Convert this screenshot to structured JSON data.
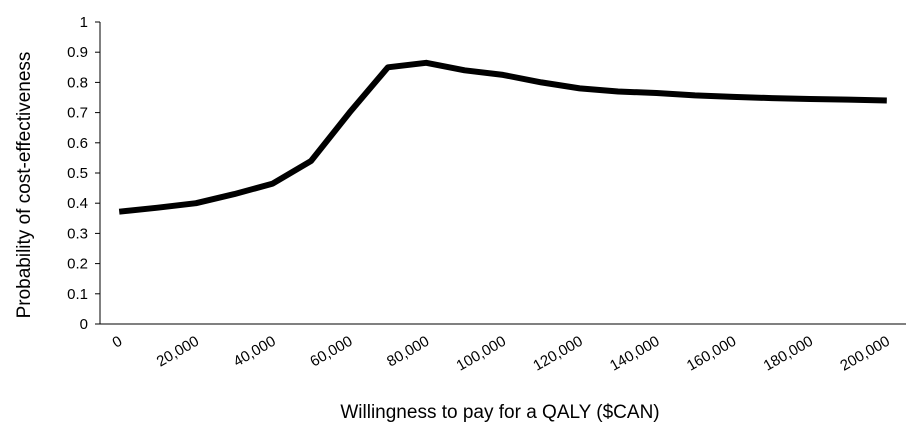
{
  "chart_data": {
    "type": "line",
    "xlabel": "Willingness to pay for a QALY ($CAN)",
    "ylabel": "Probability of cost-effectiveness",
    "categories": [
      "0",
      null,
      "20,000",
      null,
      "40,000",
      null,
      "60,000",
      null,
      "80,000",
      null,
      "100,000",
      null,
      "120,000",
      null,
      "140,000",
      null,
      "160,000",
      null,
      "180,000",
      null,
      "200,000"
    ],
    "series": [
      {
        "name": "Probability of cost-effectiveness",
        "color": "#000000",
        "values": [
          0.372,
          0.385,
          0.4,
          0.43,
          0.465,
          0.54,
          0.7,
          0.85,
          0.865,
          0.84,
          0.825,
          0.8,
          0.78,
          0.77,
          0.765,
          0.757,
          0.752,
          0.748,
          0.745,
          0.743,
          0.74
        ]
      }
    ],
    "ylim": [
      0,
      1
    ],
    "yticks": [
      0,
      0.1,
      0.2,
      0.3,
      0.4,
      0.5,
      0.6,
      0.7,
      0.8,
      0.9,
      1
    ],
    "grid": false
  }
}
